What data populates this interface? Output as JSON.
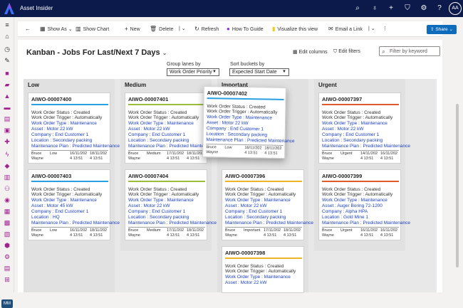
{
  "app": {
    "name": "Asset Insider",
    "avatar": "AA",
    "nav_badge": "MM"
  },
  "topicons": [
    "search-icon",
    "lightbulb-icon",
    "plus-icon",
    "filter-icon",
    "gear-icon",
    "help-icon"
  ],
  "commands": {
    "back": "←",
    "show_as": "Show As",
    "show_chart": "Show Chart",
    "new": "New",
    "delete": "Delete",
    "refresh": "Refresh",
    "how_to": "How To Guide",
    "visualize": "Visualize this view",
    "email": "Email a Link",
    "share": "Share"
  },
  "view": {
    "title": "Kanban - Jobs For Last/Next 7 Days",
    "edit_columns": "Edit columns",
    "edit_filters": "Edit filters",
    "filter_placeholder": "Filter by keyword"
  },
  "grouping": {
    "lanes_label": "Group lanes by",
    "lanes_value": "Work Order Priority",
    "buckets_label": "Sort buckets by",
    "buckets_value": "Expected Start Date"
  },
  "lanes": [
    {
      "name": "Low"
    },
    {
      "name": "Medium"
    },
    {
      "name": "Important"
    },
    {
      "name": "Urgent"
    }
  ],
  "cards": [
    {
      "id": "AIWO-00007400",
      "status": "Work Order Status : Created",
      "trigger": "Work Order Trigger : Automatically",
      "type": "Work Order Type : Maintenance",
      "asset": "Asset : Motor 22 kW",
      "company": "Company : End Customer 1",
      "location": "Location : Secondary packing",
      "plan": "Maintenance Plan : Predicted Maintenance",
      "who1": "Bruce",
      "who2": "Wayne",
      "prio": "Low",
      "d1a": "16/11/202",
      "d1b": "4 13:51",
      "d2a": "18/11/202",
      "d2b": "4 13:51"
    },
    {
      "id": "AIWO-00007403",
      "status": "Work Order Status : Created",
      "trigger": "Work Order Trigger : Automatically",
      "type": "Work Order Type : Maintenance",
      "asset": "Asset : Motor 45 kW",
      "company": "Company : End Customer 1",
      "location": "Location : HQ",
      "plan": "Maintenance Plan : Predicted Maintenance",
      "who1": "Bruce",
      "who2": "Wayne",
      "prio": "Low",
      "d1a": "16/11/202",
      "d1b": "4 13:51",
      "d2a": "18/11/202",
      "d2b": "4 13:51"
    },
    {
      "id": "AIWO-00007401",
      "status": "Work Order Status : Created",
      "trigger": "Work Order Trigger : Automatically",
      "type": "Work Order Type : Maintenance",
      "asset": "Asset : Motor 22 kW",
      "company": "Company : End Customer 1",
      "location": "Location : Secondary packing",
      "plan": "Maintenance Plan : Predicted Maintenance",
      "who1": "Bruce",
      "who2": "Wayne",
      "prio": "Medium",
      "d1a": "17/11/202",
      "d1b": "4 13:51",
      "d2a": "18/11/202",
      "d2b": "4 13:51"
    },
    {
      "id": "AIWO-00007404",
      "status": "Work Order Status : Created",
      "trigger": "Work Order Trigger : Automatically",
      "type": "Work Order Type : Maintenance",
      "asset": "Asset : Motor 22 kW",
      "company": "Company : End Customer 1",
      "location": "Location : Secondary packing",
      "plan": "Maintenance Plan : Predicted Maintenance",
      "who1": "Bruce",
      "who2": "Wayne",
      "prio": "Medium",
      "d1a": "17/11/202",
      "d1b": "4 13:51",
      "d2a": "18/11/202",
      "d2b": "4 13:51"
    },
    {
      "id": "AIWO-00007396",
      "status": "Work Order Status : Created",
      "trigger": "Work Order Trigger : Automatically",
      "type": "Work Order Type : Maintenance",
      "asset": "Asset : Motor 22 kW",
      "company": "Company : End Customer 1",
      "location": "Location : Secondary packing",
      "plan": "Maintenance Plan : Predicted Maintenance",
      "who1": "Bruce",
      "who2": "Wayne",
      "prio": "Important",
      "d1a": "17/11/202",
      "d1b": "4 13:51",
      "d2a": "18/11/202",
      "d2b": "4 13:51"
    },
    {
      "id": "AIWO-00007398",
      "status": "Work Order Status : Created",
      "trigger": "Work Order Trigger : Automatically",
      "type": "Work Order Type : Maintenance",
      "asset": "Asset : Motor 22 kW",
      "company": "",
      "location": "",
      "plan": "",
      "who1": "",
      "who2": "",
      "prio": "",
      "d1a": "",
      "d1b": "",
      "d2a": "",
      "d2b": ""
    },
    {
      "id": "AIWO-00007397",
      "status": "Work Order Status : Created",
      "trigger": "Work Order Trigger : Automatically",
      "type": "Work Order Type : Maintenance",
      "asset": "Asset : Motor 22 kW",
      "company": "Company : End Customer 1",
      "location": "Location : Secondary packing",
      "plan": "Maintenance Plan : Predicted Maintenance",
      "who1": "Bruce",
      "who2": "Wayne",
      "prio": "Urgent",
      "d1a": "14/11/202",
      "d1b": "4 13:51",
      "d2a": "16/11/202",
      "d2b": "4 13:51"
    },
    {
      "id": "AIWO-00007399",
      "status": "Work Order Status : Created",
      "trigger": "Work Order Trigger : Automatically",
      "type": "Work Order Type : Maintenance",
      "asset": "Asset : Auger Boring 72-1200",
      "company": "Company : Alpha HPA",
      "location": "Location : Gold Mine 1",
      "plan": "Maintenance Plan : Predicted Maintenance",
      "who1": "Bruce",
      "who2": "Wayne",
      "prio": "Urgent",
      "d1a": "16/11/202",
      "d1b": "4 13:51",
      "d2a": "16/11/202",
      "d2b": "4 13:51"
    },
    {
      "id": "AIWO-00007402",
      "status": "Work Order Status : Created",
      "trigger": "Work Order Trigger : Automatically",
      "type": "Work Order Type : Maintenance",
      "asset": "Asset : Motor 22 kW",
      "company": "Company : End Customer 1",
      "location": "Location : Secondary packing",
      "plan": "Maintenance Plan : Predicted Maintenance",
      "who1": "Bruce",
      "who2": "Wayne",
      "prio": "Low",
      "d1a": "16/11/202",
      "d1b": "4 13:51",
      "d2a": "18/11/202",
      "d2b": "4 13:51"
    }
  ],
  "colors": {
    "low": "#2aa0e0",
    "medium": "#9bbd3a",
    "important": "#f0b429",
    "urgent": "#e05a2a",
    "drag": "#2aa0e0"
  }
}
